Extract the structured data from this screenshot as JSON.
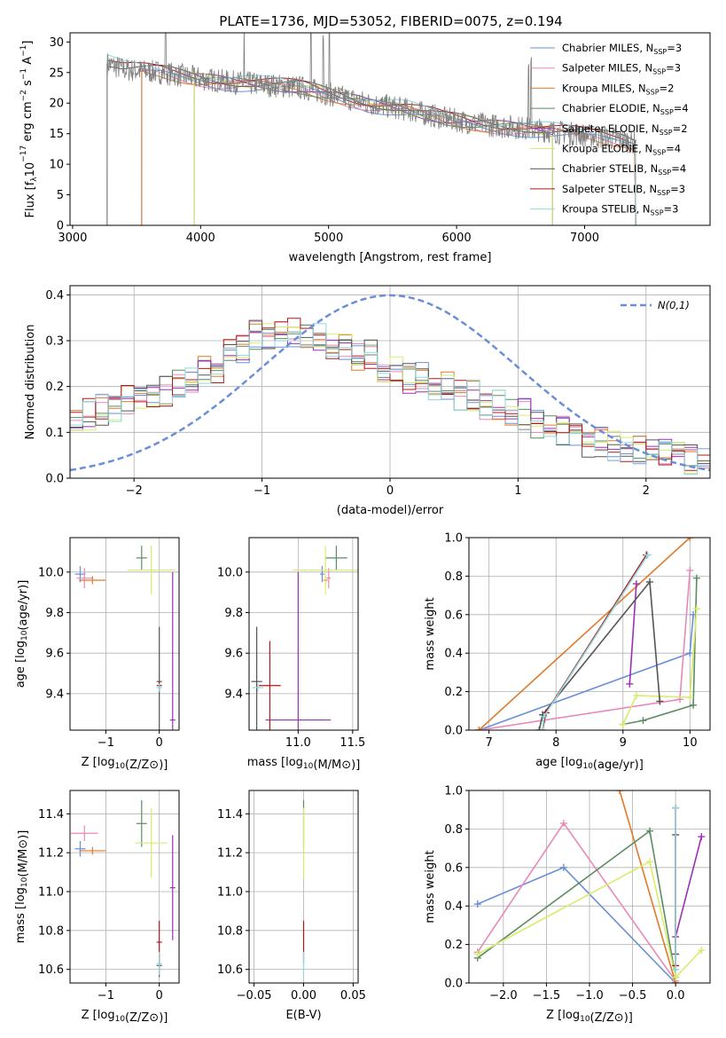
{
  "title": "PLATE=1736, MJD=53052, FIBERID=0075, z=0.194",
  "colors": {
    "Chabrier MILES": "#6a8fd8",
    "Salpeter MILES": "#e889b8",
    "Kroupa MILES": "#e07a2a",
    "Chabrier ELODIE": "#5c8c62",
    "Salpeter ELODIE": "#9b30b5",
    "Kroupa ELODIE": "#d8ec6c",
    "Chabrier STELIB": "#555555",
    "Salpeter STELIB": "#b01818",
    "Kroupa STELIB": "#8ed8de",
    "data": "#808080"
  },
  "chart_data": [
    {
      "id": "spectrum",
      "type": "line",
      "title": "PLATE=1736, MJD=53052, FIBERID=0075, z=0.194",
      "xlabel": "wavelength [Angstrom, rest frame]",
      "ylabel_parts": [
        "Flux [f",
        "λ",
        "10",
        "−17",
        " erg cm",
        "−2",
        " s",
        "−1",
        " A",
        "−1",
        "]"
      ],
      "xlim": [
        2980,
        7980
      ],
      "ylim": [
        0,
        31.5
      ],
      "xticks": [
        3000,
        4000,
        5000,
        6000,
        7000
      ],
      "yticks": [
        0,
        5,
        10,
        15,
        20,
        25,
        30
      ],
      "legend": [
        {
          "label": "Chabrier MILES, N",
          "sub": "SSP",
          "val": "=3"
        },
        {
          "label": "Salpeter MILES, N",
          "sub": "SSP",
          "val": "=3"
        },
        {
          "label": "Kroupa MILES, N",
          "sub": "SSP",
          "val": "=2"
        },
        {
          "label": "Chabrier ELODIE, N",
          "sub": "SSP",
          "val": "=4"
        },
        {
          "label": "Salpeter ELODIE, N",
          "sub": "SSP",
          "val": "=2"
        },
        {
          "label": "Kroupa ELODIE, N",
          "sub": "SSP",
          "val": "=4"
        },
        {
          "label": "Chabrier STELIB, N",
          "sub": "SSP",
          "val": "=4"
        },
        {
          "label": "Salpeter STELIB, N",
          "sub": "SSP",
          "val": "=3"
        },
        {
          "label": "Kroupa STELIB, N",
          "sub": "SSP",
          "val": "=3"
        }
      ],
      "data_x": [
        3270,
        3400,
        3700,
        4000,
        4200,
        4500,
        4800,
        5000,
        5300,
        5600,
        5900,
        6200,
        6500,
        6700,
        6900,
        7100,
        7300,
        7400
      ],
      "data_y": [
        26.5,
        25.5,
        25,
        24,
        23.5,
        23,
        22.5,
        21.5,
        20,
        19,
        17.5,
        16.5,
        16,
        15.5,
        15,
        14.5,
        14,
        13.5
      ],
      "model_starts": {
        "Chabrier MILES": 3540,
        "Salpeter MILES": 3540,
        "Kroupa MILES": 3540,
        "Chabrier ELODIE": 3950,
        "Salpeter ELODIE": 3950,
        "Kroupa ELODIE": 3950,
        "Chabrier STELIB": 3270,
        "Salpeter STELIB": 3270,
        "Kroupa STELIB": 3270
      },
      "model_ends": {
        "Chabrier MILES": 7400,
        "Salpeter MILES": 7400,
        "Kroupa MILES": 7400,
        "Chabrier ELODIE": 6750,
        "Salpeter ELODIE": 6750,
        "Kroupa ELODIE": 6750,
        "Chabrier STELIB": 7400,
        "Salpeter STELIB": 7400,
        "Kroupa STELIB": 7400
      }
    },
    {
      "id": "residuals",
      "type": "line",
      "xlabel": "(data-model)/error",
      "ylabel": "Normed distribution",
      "xlim": [
        -2.5,
        2.5
      ],
      "ylim": [
        0,
        0.42
      ],
      "xticks": [
        -2,
        -1,
        0,
        1,
        2
      ],
      "yticks": [
        0.0,
        0.1,
        0.2,
        0.3,
        0.4
      ],
      "legend": "N(0,1)",
      "reference": "normal(0,1)",
      "hist_centers": [
        -2.4,
        -2.2,
        -2.0,
        -1.8,
        -1.6,
        -1.4,
        -1.2,
        -1.0,
        -0.8,
        -0.6,
        -0.4,
        -0.2,
        0.0,
        0.2,
        0.4,
        0.6,
        0.8,
        1.0,
        1.2,
        1.4,
        1.6,
        1.8,
        2.0,
        2.2,
        2.4
      ],
      "hist_values": [
        0.14,
        0.15,
        0.17,
        0.19,
        0.21,
        0.24,
        0.28,
        0.31,
        0.32,
        0.31,
        0.29,
        0.27,
        0.24,
        0.22,
        0.2,
        0.18,
        0.16,
        0.14,
        0.12,
        0.1,
        0.08,
        0.07,
        0.06,
        0.05,
        0.04
      ]
    },
    {
      "id": "age_vs_Z",
      "type": "scatter",
      "xlabel": "Z [log10(Z/Z_sun)]",
      "ylabel": "age [log10(age/yr)]",
      "xlim": [
        -1.67,
        0.37
      ],
      "ylim": [
        9.22,
        10.17
      ],
      "xticks": [
        -1,
        0
      ],
      "yticks": [
        9.4,
        9.6,
        9.8,
        10.0
      ],
      "points": [
        {
          "model": "Chabrier MILES",
          "x": -1.48,
          "y": 9.99,
          "xerr": 0.1,
          "yerr": 0.04
        },
        {
          "model": "Salpeter MILES",
          "x": -1.4,
          "y": 9.97,
          "xerr": 0.15,
          "yerr": 0.05
        },
        {
          "model": "Kroupa MILES",
          "x": -1.25,
          "y": 9.96,
          "xerr": 0.25,
          "yerr": 0.02
        },
        {
          "model": "Chabrier ELODIE",
          "x": -0.33,
          "y": 10.07,
          "xerr": 0.1,
          "yerr": 0.06
        },
        {
          "model": "Salpeter ELODIE",
          "x": 0.25,
          "y": 9.27,
          "xerr": 0.05,
          "yerr": 0.73
        },
        {
          "model": "Kroupa ELODIE",
          "x": -0.15,
          "y": 10.01,
          "xerr": 0.45,
          "yerr": 0.12
        },
        {
          "model": "Chabrier STELIB",
          "x": 0.0,
          "y": 9.46,
          "xerr": 0.05,
          "yerr": 0.27
        },
        {
          "model": "Salpeter STELIB",
          "x": 0.0,
          "y": 9.44,
          "xerr": 0.05,
          "yerr": 0.02
        },
        {
          "model": "Kroupa STELIB",
          "x": 0.0,
          "y": 9.43,
          "xerr": 0.05,
          "yerr": 0.02
        }
      ]
    },
    {
      "id": "age_vs_mass",
      "type": "scatter",
      "xlabel": "mass [log10(M/M_sun)]",
      "ylabel": "",
      "xlim": [
        10.55,
        11.55
      ],
      "ylim": [
        9.22,
        10.17
      ],
      "xticks": [
        11.0,
        11.5
      ],
      "yticks": [
        9.4,
        9.6,
        9.8,
        10.0
      ],
      "points": [
        {
          "model": "Chabrier MILES",
          "x": 11.22,
          "y": 9.99,
          "xerr": 0.02,
          "yerr": 0.04
        },
        {
          "model": "Salpeter MILES",
          "x": 11.28,
          "y": 9.97,
          "xerr": 0.02,
          "yerr": 0.05
        },
        {
          "model": "Kroupa MILES",
          "x": 11.25,
          "y": 9.96,
          "xerr": 0.02,
          "yerr": 0.02
        },
        {
          "model": "Chabrier ELODIE",
          "x": 11.35,
          "y": 10.07,
          "xerr": 0.1,
          "yerr": 0.06
        },
        {
          "model": "Salpeter ELODIE",
          "x": 11.0,
          "y": 9.27,
          "xerr": 0.3,
          "yerr": 0.73
        },
        {
          "model": "Kroupa ELODIE",
          "x": 11.25,
          "y": 10.01,
          "xerr": 0.3,
          "yerr": 0.12
        },
        {
          "model": "Chabrier STELIB",
          "x": 10.62,
          "y": 9.46,
          "xerr": 0.05,
          "yerr": 0.27
        },
        {
          "model": "Salpeter STELIB",
          "x": 10.74,
          "y": 9.44,
          "xerr": 0.1,
          "yerr": 0.22
        },
        {
          "model": "Kroupa STELIB",
          "x": 10.63,
          "y": 9.43,
          "xerr": 0.05,
          "yerr": 0.02
        }
      ]
    },
    {
      "id": "mass_weight_vs_age",
      "type": "line",
      "xlabel": "age [log10(age/yr)]",
      "ylabel": "mass weight",
      "xlim": [
        6.7,
        10.3
      ],
      "ylim": [
        0,
        1.0
      ],
      "xticks": [
        7,
        8,
        9,
        10
      ],
      "yticks": [
        0.0,
        0.2,
        0.4,
        0.6,
        0.8,
        1.0
      ],
      "series": [
        {
          "model": "Chabrier MILES",
          "x": [
            6.85,
            10.0,
            10.05
          ],
          "y": [
            0.0,
            0.4,
            0.6
          ]
        },
        {
          "model": "Salpeter MILES",
          "x": [
            6.85,
            9.85,
            10.0
          ],
          "y": [
            0.0,
            0.16,
            0.83
          ]
        },
        {
          "model": "Kroupa MILES",
          "x": [
            6.85,
            10.0
          ],
          "y": [
            0.0,
            1.0
          ]
        },
        {
          "model": "Chabrier ELODIE",
          "x": [
            9.0,
            9.3,
            10.05,
            10.1
          ],
          "y": [
            0.03,
            0.05,
            0.13,
            0.79
          ]
        },
        {
          "model": "Salpeter ELODIE",
          "x": [
            9.1,
            9.2
          ],
          "y": [
            0.24,
            0.76
          ]
        },
        {
          "model": "Kroupa ELODIE",
          "x": [
            9.0,
            9.2,
            10.0,
            10.1
          ],
          "y": [
            0.03,
            0.18,
            0.17,
            0.63
          ]
        },
        {
          "model": "Chabrier STELIB",
          "x": [
            7.75,
            7.8,
            9.4,
            9.55
          ],
          "y": [
            0.0,
            0.08,
            0.77,
            0.15
          ]
        },
        {
          "model": "Salpeter STELIB",
          "x": [
            7.8,
            7.85,
            9.35
          ],
          "y": [
            0.0,
            0.09,
            0.91
          ]
        },
        {
          "model": "Kroupa STELIB",
          "x": [
            7.8,
            7.82,
            9.37
          ],
          "y": [
            0.0,
            0.07,
            0.91
          ]
        }
      ]
    },
    {
      "id": "mass_vs_Z",
      "type": "scatter",
      "xlabel": "Z [log10(Z/Z_sun)]",
      "ylabel": "mass [log10(M/M_sun)]",
      "xlim": [
        -1.67,
        0.37
      ],
      "ylim": [
        10.53,
        11.52
      ],
      "xticks": [
        -1,
        0
      ],
      "yticks": [
        10.6,
        10.8,
        11.0,
        11.2,
        11.4
      ],
      "points": [
        {
          "model": "Chabrier MILES",
          "x": -1.48,
          "y": 11.22,
          "xerr": 0.1,
          "yerr": 0.04
        },
        {
          "model": "Salpeter MILES",
          "x": -1.4,
          "y": 11.3,
          "xerr": 0.25,
          "yerr": 0.04
        },
        {
          "model": "Kroupa MILES",
          "x": -1.25,
          "y": 11.21,
          "xerr": 0.25,
          "yerr": 0.02
        },
        {
          "model": "Chabrier ELODIE",
          "x": -0.33,
          "y": 11.35,
          "xerr": 0.1,
          "yerr": 0.12
        },
        {
          "model": "Salpeter ELODIE",
          "x": 0.25,
          "y": 11.02,
          "xerr": 0.05,
          "yerr": 0.27
        },
        {
          "model": "Kroupa ELODIE",
          "x": -0.15,
          "y": 11.25,
          "xerr": 0.3,
          "yerr": 0.18
        },
        {
          "model": "Chabrier STELIB",
          "x": 0.0,
          "y": 10.62,
          "xerr": 0.05,
          "yerr": 0.06
        },
        {
          "model": "Salpeter STELIB",
          "x": 0.0,
          "y": 10.74,
          "xerr": 0.05,
          "yerr": 0.11
        },
        {
          "model": "Kroupa STELIB",
          "x": 0.0,
          "y": 10.63,
          "xerr": 0.05,
          "yerr": 0.06
        }
      ]
    },
    {
      "id": "mass_vs_ebv",
      "type": "scatter",
      "xlabel": "E(B-V)",
      "ylabel": "",
      "xlim": [
        -0.055,
        0.055
      ],
      "ylim": [
        10.53,
        11.52
      ],
      "xticks": [
        -0.05,
        0.0,
        0.05
      ],
      "yticks": [
        10.6,
        10.8,
        11.0,
        11.2,
        11.4
      ],
      "points": [
        {
          "model": "Chabrier ELODIE",
          "x": 0.0,
          "y": 11.35,
          "xerr": 0.0,
          "yerr": 0.12
        },
        {
          "model": "Kroupa ELODIE",
          "x": 0.0,
          "y": 11.25,
          "xerr": 0.0,
          "yerr": 0.18
        },
        {
          "model": "Salpeter STELIB",
          "x": 0.0,
          "y": 10.74,
          "xerr": 0.0,
          "yerr": 0.11
        },
        {
          "model": "Kroupa STELIB",
          "x": 0.0,
          "y": 10.63,
          "xerr": 0.0,
          "yerr": 0.06
        }
      ]
    },
    {
      "id": "mass_weight_vs_Z",
      "type": "line",
      "xlabel": "Z [log10(Z/Z_sun)]",
      "ylabel": "mass weight",
      "xlim": [
        -2.4,
        0.4
      ],
      "ylim": [
        0,
        1.0
      ],
      "xticks": [
        -2.0,
        -1.5,
        -1.0,
        -0.5,
        0.0
      ],
      "yticks": [
        0.0,
        0.2,
        0.4,
        0.6,
        0.8,
        1.0
      ],
      "series": [
        {
          "model": "Chabrier MILES",
          "x": [
            -2.3,
            -1.3,
            0.0
          ],
          "y": [
            0.41,
            0.6,
            0.0
          ]
        },
        {
          "model": "Salpeter MILES",
          "x": [
            -2.3,
            -1.3,
            0.0
          ],
          "y": [
            0.16,
            0.83,
            0.01
          ]
        },
        {
          "model": "Kroupa MILES",
          "x": [
            -0.65,
            0.0
          ],
          "y": [
            1.0,
            0.0
          ]
        },
        {
          "model": "Chabrier ELODIE",
          "x": [
            -2.3,
            -0.3,
            0.0
          ],
          "y": [
            0.13,
            0.79,
            0.03
          ]
        },
        {
          "model": "Salpeter ELODIE",
          "x": [
            0.0,
            0.3
          ],
          "y": [
            0.24,
            0.76
          ]
        },
        {
          "model": "Kroupa ELODIE",
          "x": [
            -2.3,
            -0.3,
            0.0,
            0.3
          ],
          "y": [
            0.15,
            0.63,
            0.03,
            0.17
          ]
        },
        {
          "model": "Chabrier STELIB",
          "x": [
            0.0,
            0.0
          ],
          "y": [
            0.15,
            0.77
          ]
        },
        {
          "model": "Salpeter STELIB",
          "x": [
            0.0,
            0.0
          ],
          "y": [
            0.09,
            0.91
          ]
        },
        {
          "model": "Kroupa STELIB",
          "x": [
            0.0,
            0.0
          ],
          "y": [
            0.07,
            0.91
          ]
        }
      ]
    }
  ]
}
